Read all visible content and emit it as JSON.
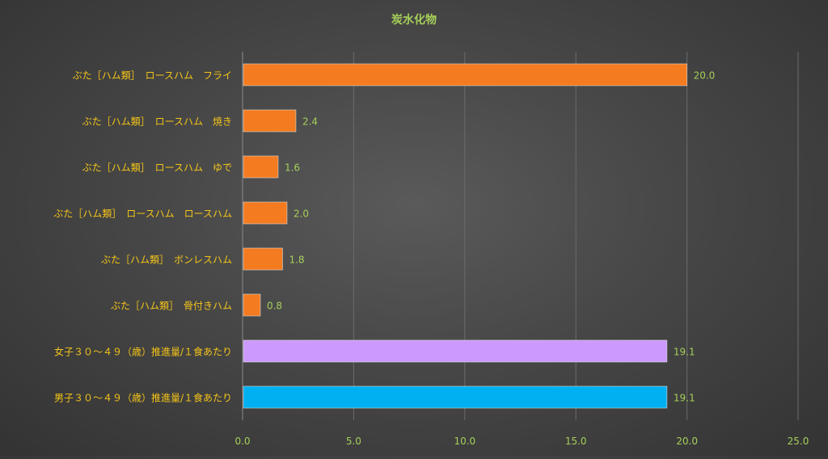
{
  "chart_data": {
    "type": "bar",
    "orientation": "horizontal",
    "title": "炭水化物",
    "xlabel": "",
    "ylabel": "",
    "xlim": [
      0,
      25
    ],
    "xticks": [
      "0.0",
      "5.0",
      "10.0",
      "15.0",
      "20.0",
      "25.0"
    ],
    "grid": true,
    "legend": "none",
    "categories": [
      "ぶた［ハム類］　ロースハム　フライ",
      "ぶた［ハム類］　ロースハム　焼き",
      "ぶた［ハム類］　ロースハム　ゆで",
      "ぶた［ハム類］　ロースハム　ロースハム",
      "ぶた［ハム類］　ボンレスハム",
      "ぶた［ハム類］　骨付きハム",
      "女子３０～４９（歳）推進量/１食あたり",
      "男子３０～４９（歳）推進量/１食あたり"
    ],
    "values": [
      20.0,
      2.4,
      1.6,
      2.0,
      1.8,
      0.8,
      19.1,
      19.1
    ],
    "value_labels": [
      "20.0",
      "2.4",
      "1.6",
      "2.0",
      "1.8",
      "0.8",
      "19.1",
      "19.1"
    ],
    "bar_colors": [
      "#f47b20",
      "#f47b20",
      "#f47b20",
      "#f47b20",
      "#f47b20",
      "#f47b20",
      "#cc99ff",
      "#00b0f0"
    ]
  },
  "colors": {
    "title": "#a6cf5a",
    "category_label": "#f5c518",
    "value_label": "#a6cf5a",
    "tick_label": "#a6cf5a",
    "gridline": "#6b6b6b",
    "axis_line": "#8a8a8a"
  }
}
